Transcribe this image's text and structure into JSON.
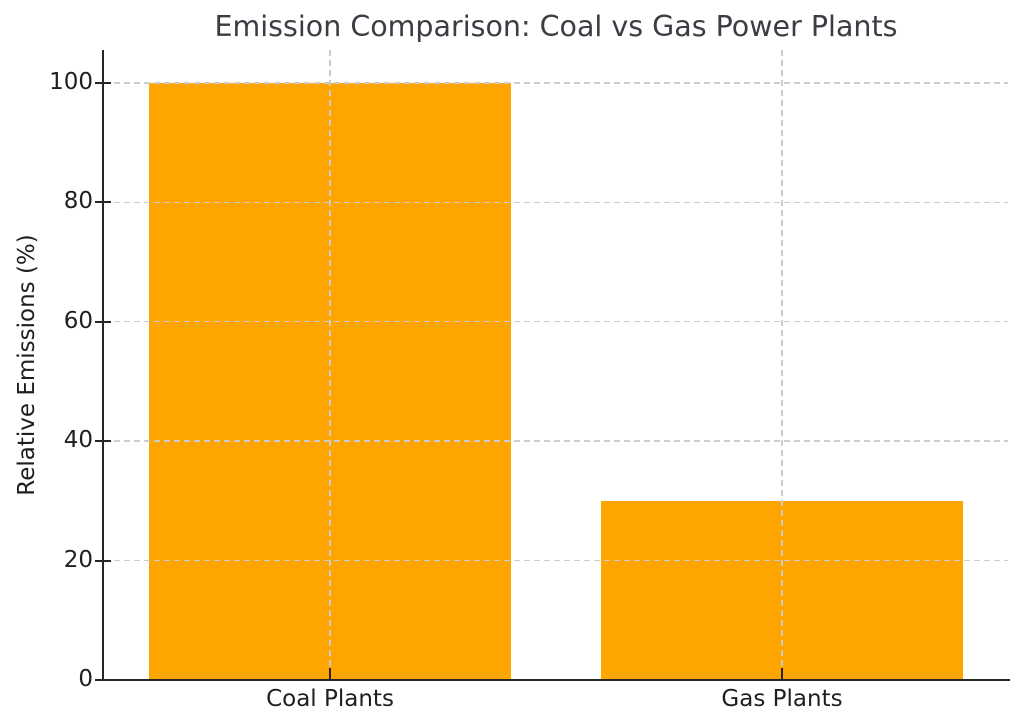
{
  "chart_data": {
    "type": "bar",
    "title": "Emission Comparison: Coal vs Gas Power Plants",
    "xlabel": "",
    "ylabel": "Relative Emissions (%)",
    "categories": [
      "Coal Plants",
      "Gas Plants"
    ],
    "values": [
      100,
      30
    ],
    "yticks": [
      0,
      20,
      40,
      60,
      80,
      100
    ],
    "ylim": [
      0,
      105.5
    ],
    "bar_color": "#FFA500",
    "bar_width_fraction": 0.8,
    "grid": true,
    "grid_color": "#cccccc",
    "grid_style": "dashed",
    "axis_color": "#262626",
    "tick_label_color": "#1f1f1f",
    "title_color": "#3a3e44",
    "background": "#ffffff",
    "legend_position": "none"
  }
}
